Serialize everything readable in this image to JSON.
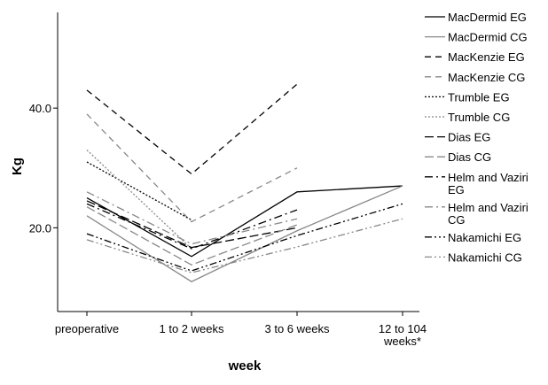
{
  "chart_data": {
    "type": "line",
    "xlabel": "week",
    "ylabel": "Kg",
    "categories": [
      [
        "preoperative"
      ],
      [
        "1 to 2 weeks"
      ],
      [
        "3 to 6 weeks"
      ],
      [
        "12 to 104",
        "weeks*"
      ]
    ],
    "ylim": [
      6,
      56
    ],
    "yticks": [
      {
        "value": 20,
        "label": "20.0"
      },
      {
        "value": 40,
        "label": "40.0"
      }
    ],
    "grid": false,
    "legend_position": "right",
    "series": [
      {
        "name": "MacDermid EG",
        "legend_lines": [
          "MacDermid EG"
        ],
        "style": "solid",
        "color": "#000000",
        "values": [
          25,
          15.2,
          26,
          27
        ]
      },
      {
        "name": "MacDermid CG",
        "legend_lines": [
          "MacDermid CG"
        ],
        "style": "solid",
        "color": "#888888",
        "values": [
          22,
          11,
          19.5,
          27
        ]
      },
      {
        "name": "MacKenzie EG",
        "legend_lines": [
          "MacKenzie EG"
        ],
        "style": "dash",
        "color": "#000000",
        "values": [
          43,
          29,
          44,
          null
        ]
      },
      {
        "name": "MacKenzie CG",
        "legend_lines": [
          "MacKenzie CG"
        ],
        "style": "dash",
        "color": "#888888",
        "values": [
          39,
          21,
          30,
          null
        ]
      },
      {
        "name": "Trumble EG",
        "legend_lines": [
          "Trumble EG"
        ],
        "style": "dot",
        "color": "#000000",
        "values": [
          31,
          21.3,
          null,
          null
        ]
      },
      {
        "name": "Trumble CG",
        "legend_lines": [
          "Trumble CG"
        ],
        "style": "dot",
        "color": "#888888",
        "values": [
          33,
          16.5,
          null,
          null
        ]
      },
      {
        "name": "Dias EG",
        "legend_lines": [
          "Dias EG"
        ],
        "style": "longdash",
        "color": "#000000",
        "values": [
          24.5,
          16.7,
          20,
          null
        ]
      },
      {
        "name": "Dias CG",
        "legend_lines": [
          "Dias CG"
        ],
        "style": "longdash",
        "color": "#888888",
        "values": [
          23.5,
          13.8,
          20.5,
          null
        ]
      },
      {
        "name": "Helm and Vaziri EG",
        "legend_lines": [
          "Helm and Vaziri",
          "EG"
        ],
        "style": "dashdot",
        "color": "#000000",
        "values": [
          24,
          16.5,
          23,
          null
        ]
      },
      {
        "name": "Helm and Vaziri CG",
        "legend_lines": [
          "Helm and Vaziri",
          "CG"
        ],
        "style": "dashdot",
        "color": "#888888",
        "values": [
          26,
          17.3,
          21.5,
          null
        ]
      },
      {
        "name": "Nakamichi EG",
        "legend_lines": [
          "Nakamichi EG"
        ],
        "style": "dashdotdot",
        "color": "#000000",
        "values": [
          19,
          12.8,
          18.7,
          24
        ]
      },
      {
        "name": "Nakamichi CG",
        "legend_lines": [
          "Nakamichi CG"
        ],
        "style": "dashdotdot",
        "color": "#888888",
        "values": [
          18,
          12.5,
          16.8,
          21.5
        ]
      }
    ]
  }
}
